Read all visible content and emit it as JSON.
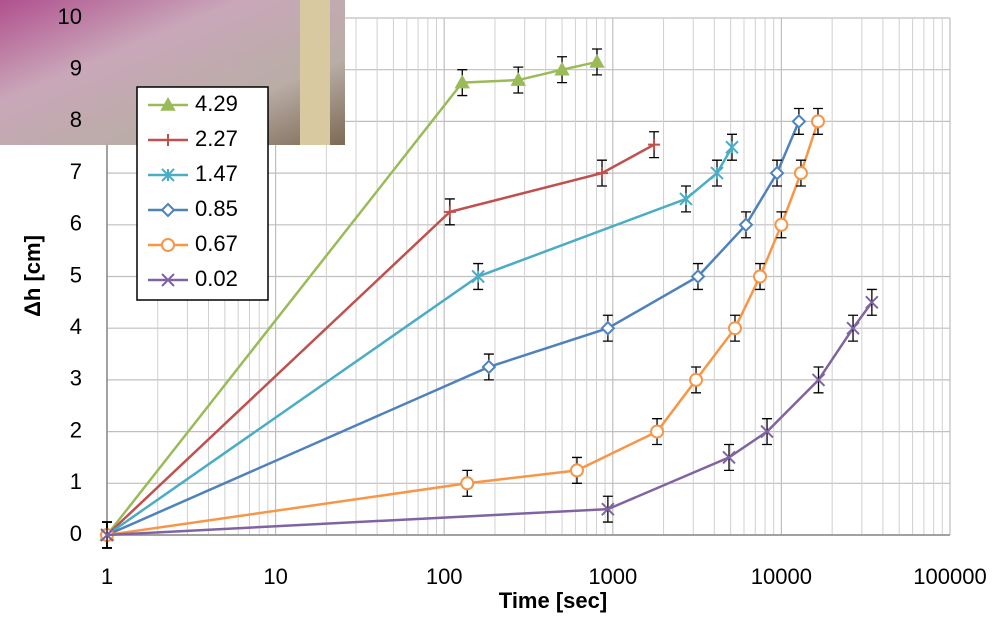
{
  "chart_data": {
    "type": "line",
    "x_label": "Time [sec]",
    "y_label": "Δh [cm]",
    "xlim": [
      1,
      100000
    ],
    "xticks": [
      1,
      10,
      100,
      1000,
      10000,
      100000
    ],
    "x_log": true,
    "ylim": [
      0,
      10
    ],
    "yticks": [
      0,
      1,
      2,
      3,
      4,
      5,
      6,
      7,
      8,
      9,
      10
    ],
    "grid": true,
    "minor_grid": true,
    "legend": "upper left",
    "series": [
      {
        "name": "4.29",
        "color": "#9bbb59",
        "marker": "triangle",
        "error": 0.25,
        "x": [
          1,
          128,
          275,
          500,
          806
        ],
        "values": [
          0,
          8.75,
          8.8,
          9.0,
          9.15
        ]
      },
      {
        "name": "2.27",
        "color": "#c0504d",
        "marker": "plus",
        "error": 0.25,
        "x": [
          1,
          108,
          863,
          1757
        ],
        "values": [
          0,
          6.25,
          7.0,
          7.55
        ]
      },
      {
        "name": "1.47",
        "color": "#4bacc6",
        "marker": "star",
        "error": 0.25,
        "x": [
          1,
          159,
          2717,
          4150,
          5093
        ],
        "values": [
          0,
          5.0,
          6.5,
          7.0,
          7.5
        ]
      },
      {
        "name": "0.85",
        "color": "#4f81bd",
        "marker": "diamond",
        "error": 0.25,
        "x": [
          1,
          184,
          935,
          3200,
          6165,
          9420,
          12700
        ],
        "values": [
          0,
          3.25,
          4.0,
          5.0,
          6.0,
          7.0,
          8.0
        ]
      },
      {
        "name": "0.67",
        "color": "#f79646",
        "marker": "circle",
        "error": 0.25,
        "x": [
          1,
          137,
          613,
          1830,
          3117,
          5306,
          7468,
          10000,
          13060,
          16480
        ],
        "values": [
          0,
          1.0,
          1.25,
          2.0,
          3.0,
          4.0,
          5.0,
          6.0,
          7.0,
          8.0
        ]
      },
      {
        "name": "0.02",
        "color": "#8064a2",
        "marker": "x",
        "error": 0.25,
        "x": [
          1,
          935,
          4890,
          8220,
          16600,
          26600,
          34400
        ],
        "values": [
          0,
          0.5,
          1.5,
          2.0,
          3.0,
          4.0,
          4.5
        ]
      }
    ]
  }
}
